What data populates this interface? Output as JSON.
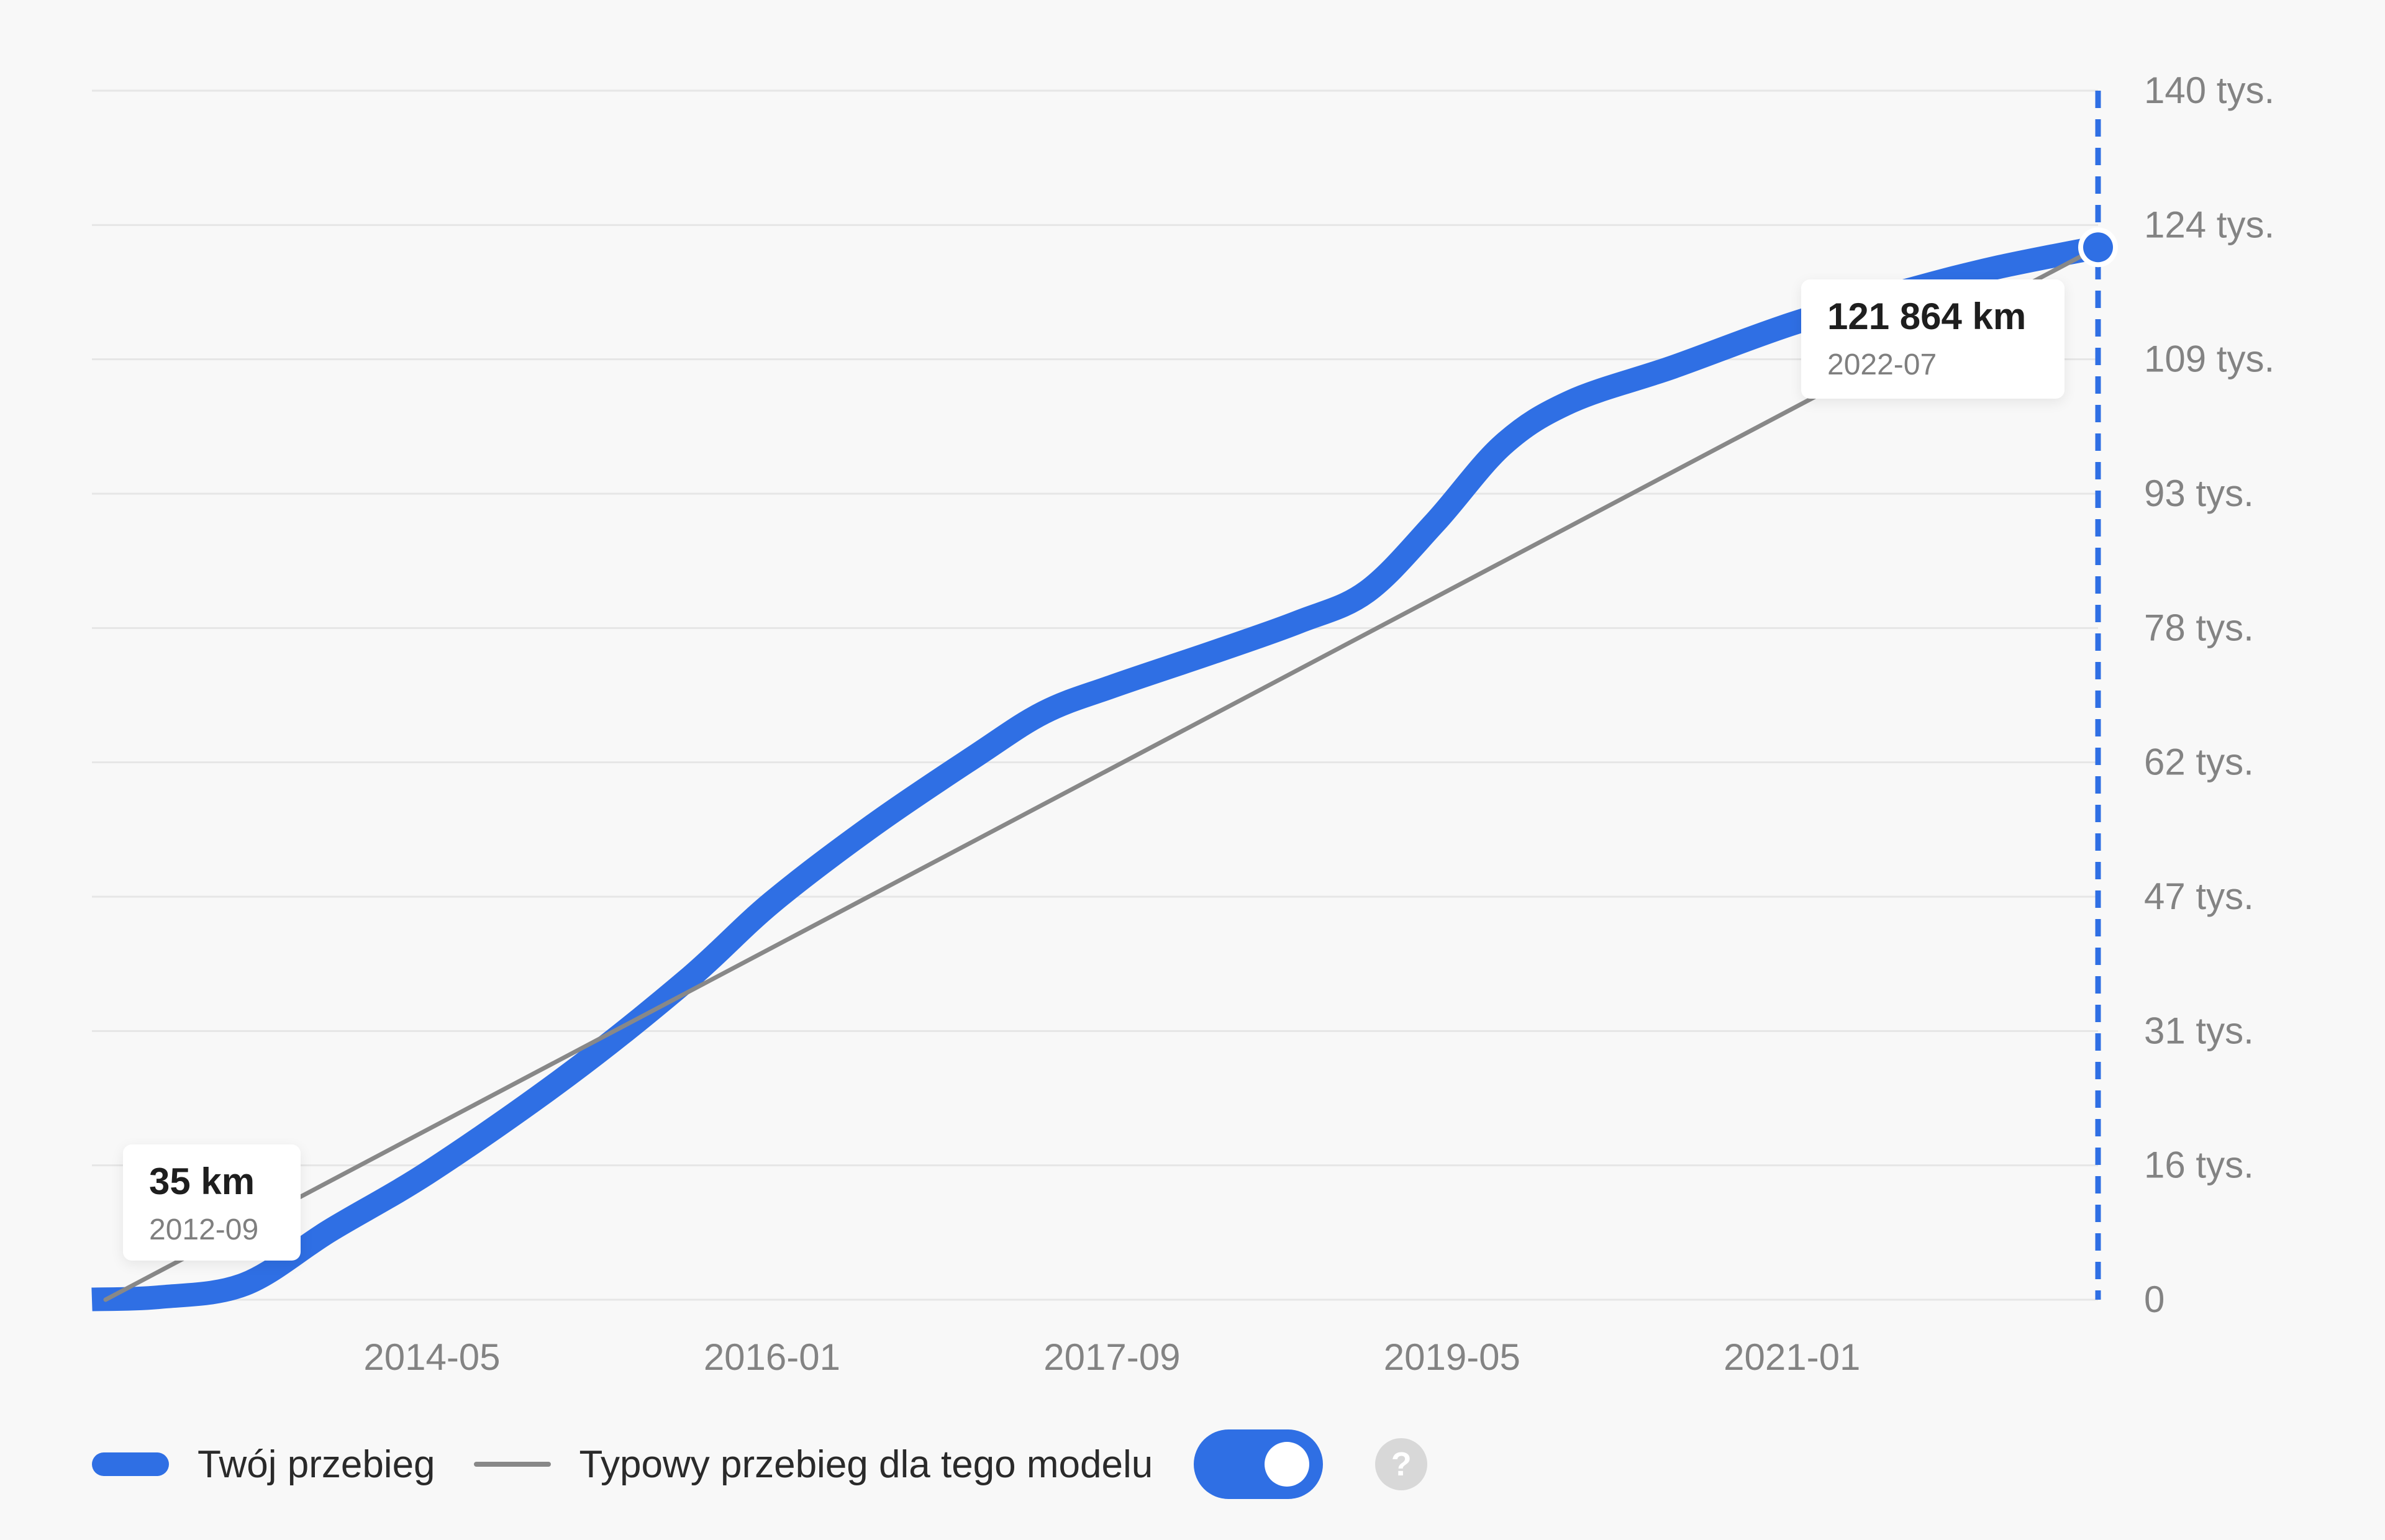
{
  "chart_data": {
    "type": "line",
    "x_ticks": [
      "2014-05",
      "2016-01",
      "2017-09",
      "2019-05",
      "2021-01"
    ],
    "y_ticks": [
      "0",
      "16 tys.",
      "31 tys.",
      "47 tys.",
      "62 tys.",
      "78 tys.",
      "93 tys.",
      "109 tys.",
      "124 tys.",
      "140 tys."
    ],
    "xlim": [
      "2012-09",
      "2022-07"
    ],
    "ylim": [
      0,
      140000
    ],
    "grid": true,
    "y_axis_side": "right",
    "legend_position": "bottom-left",
    "series": [
      {
        "name": "Twój przebieg",
        "color": "#2f6fe4",
        "x": [
          "2012-09",
          "2013-01",
          "2013-06",
          "2013-11",
          "2014-05",
          "2015-01",
          "2015-08",
          "2016-01",
          "2016-07",
          "2017-01",
          "2017-05",
          "2017-09",
          "2018-03",
          "2018-08",
          "2018-12",
          "2019-04",
          "2019-08",
          "2019-12",
          "2020-06",
          "2021-01",
          "2021-08",
          "2022-01",
          "2022-07"
        ],
        "y": [
          35,
          300,
          1800,
          8000,
          15000,
          26000,
          37000,
          46000,
          55000,
          63000,
          68000,
          71000,
          75000,
          78500,
          82000,
          90000,
          99000,
          104000,
          108000,
          113000,
          117000,
          119500,
          121864
        ]
      },
      {
        "name": "Typowy przebieg dla tego modelu",
        "color": "#888888",
        "x": [
          "2012-09",
          "2022-07"
        ],
        "y": [
          0,
          121864
        ]
      }
    ],
    "annotations": [
      {
        "value": "35 km",
        "date": "2012-09"
      },
      {
        "value": "121 864 km",
        "date": "2022-07"
      }
    ]
  },
  "legend": {
    "series1_label": "Twój przebieg",
    "series2_label": "Typowy przebieg dla tego modelu",
    "toggle_on": true,
    "help_icon": "question-mark-icon"
  },
  "colors": {
    "accent": "#2f6fe4",
    "typical": "#888888",
    "grid": "#e6e6e6",
    "tick_text": "#838383",
    "toggle_bg": "#2f6fe4"
  }
}
